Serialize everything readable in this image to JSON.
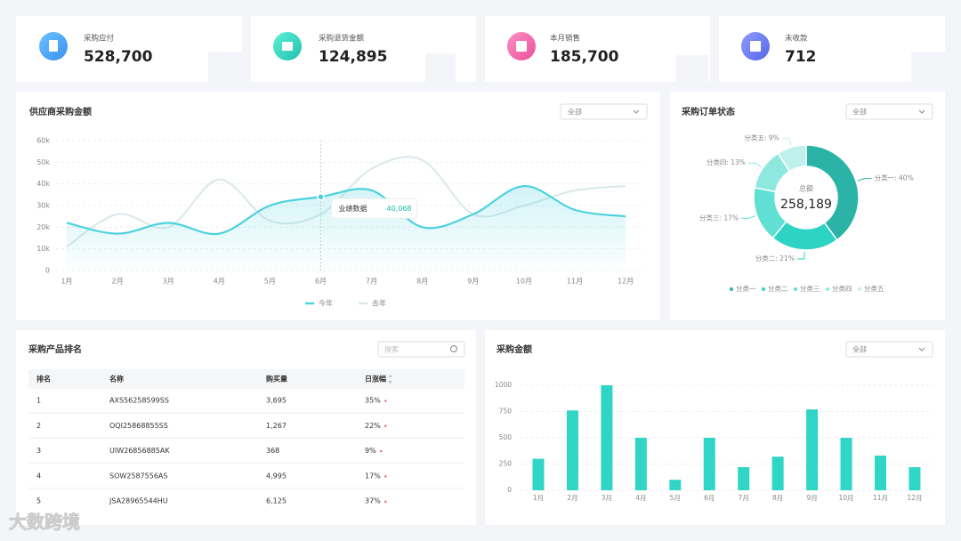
{
  "cards": [
    {
      "label": "采购应付",
      "value": "528,700"
    },
    {
      "label": "采购退货金额",
      "value": "124,895"
    },
    {
      "label": "本月销售",
      "value": "185,700"
    },
    {
      "label": "未收款",
      "value": "712"
    }
  ],
  "chart_data": [
    {
      "type": "line",
      "title": "供应商采购金额",
      "dropdown": "全部",
      "categories": [
        "1月",
        "2月",
        "3月",
        "4月",
        "5月",
        "6月",
        "7月",
        "8月",
        "9月",
        "10月",
        "11月",
        "12月"
      ],
      "series": [
        {
          "name": "今年",
          "color": "#4dd2de",
          "values": [
            22000,
            17000,
            22000,
            17000,
            30000,
            34000,
            37000,
            20000,
            26000,
            39000,
            28000,
            25000
          ]
        },
        {
          "name": "去年",
          "color": "#d9e8ea",
          "values": [
            11000,
            26000,
            20000,
            42000,
            23000,
            26000,
            47000,
            51000,
            26000,
            30000,
            37000,
            39000
          ]
        }
      ],
      "ylim": [
        0,
        60000
      ],
      "yticks": [
        0,
        {
          "value": 10000,
          "label": "10k"
        },
        {
          "value": 20000,
          "label": "20k"
        },
        {
          "value": 30000,
          "label": "30k"
        },
        {
          "value": 40000,
          "label": "40k"
        },
        {
          "value": 50000,
          "label": "50k"
        },
        {
          "value": 60000,
          "label": "60k"
        }
      ],
      "grid": true,
      "legend": "bottom",
      "tooltip": {
        "label": "业绩数据",
        "value": "40,068"
      }
    },
    {
      "type": "pie",
      "title": "采购订单状态",
      "dropdown": "全部",
      "center_label": "总额",
      "center_value": "258,189",
      "categories": [
        "分类一",
        "分类二",
        "分类三",
        "分类四",
        "分类五"
      ],
      "values": [
        40,
        21,
        17,
        13,
        9
      ],
      "value_labels": [
        "分类一: 40%",
        "分类二: 21%",
        "分类三: 17%",
        "分类四: 13%",
        "分类五: 9%"
      ],
      "colors": [
        "#2bb3a7",
        "#2dd3c3",
        "#5fe0d3",
        "#8fe8df",
        "#c0f0eb"
      ],
      "legend": "bottom"
    },
    {
      "type": "bar",
      "title": "采购金额",
      "dropdown": "全部",
      "categories": [
        "1月",
        "2月",
        "3月",
        "4月",
        "5月",
        "6月",
        "7月",
        "8月",
        "9月",
        "10月",
        "11月",
        "12月"
      ],
      "values": [
        300,
        760,
        1000,
        500,
        100,
        500,
        220,
        320,
        770,
        500,
        330,
        220
      ],
      "color": "#2fd5c5",
      "ylim": [
        0,
        1000
      ],
      "yticks": [
        0,
        250,
        500,
        750,
        1000
      ],
      "grid": true
    }
  ],
  "table": {
    "title": "采购产品排名",
    "search": "搜索",
    "columns": [
      "排名",
      "名称",
      "购买量",
      "日涨幅"
    ],
    "rows": [
      [
        "1",
        "AXS56258599SS",
        "3,695",
        "35%"
      ],
      [
        "2",
        "OQI25868855SS",
        "1,267",
        "22%"
      ],
      [
        "3",
        "UIW26856885AK",
        "368",
        "9%"
      ],
      [
        "4",
        "SOW2587556AS",
        "4,995",
        "17%"
      ],
      [
        "5",
        "JSA28965544HU",
        "6,125",
        "37%"
      ]
    ]
  },
  "watermark": "大数跨境"
}
